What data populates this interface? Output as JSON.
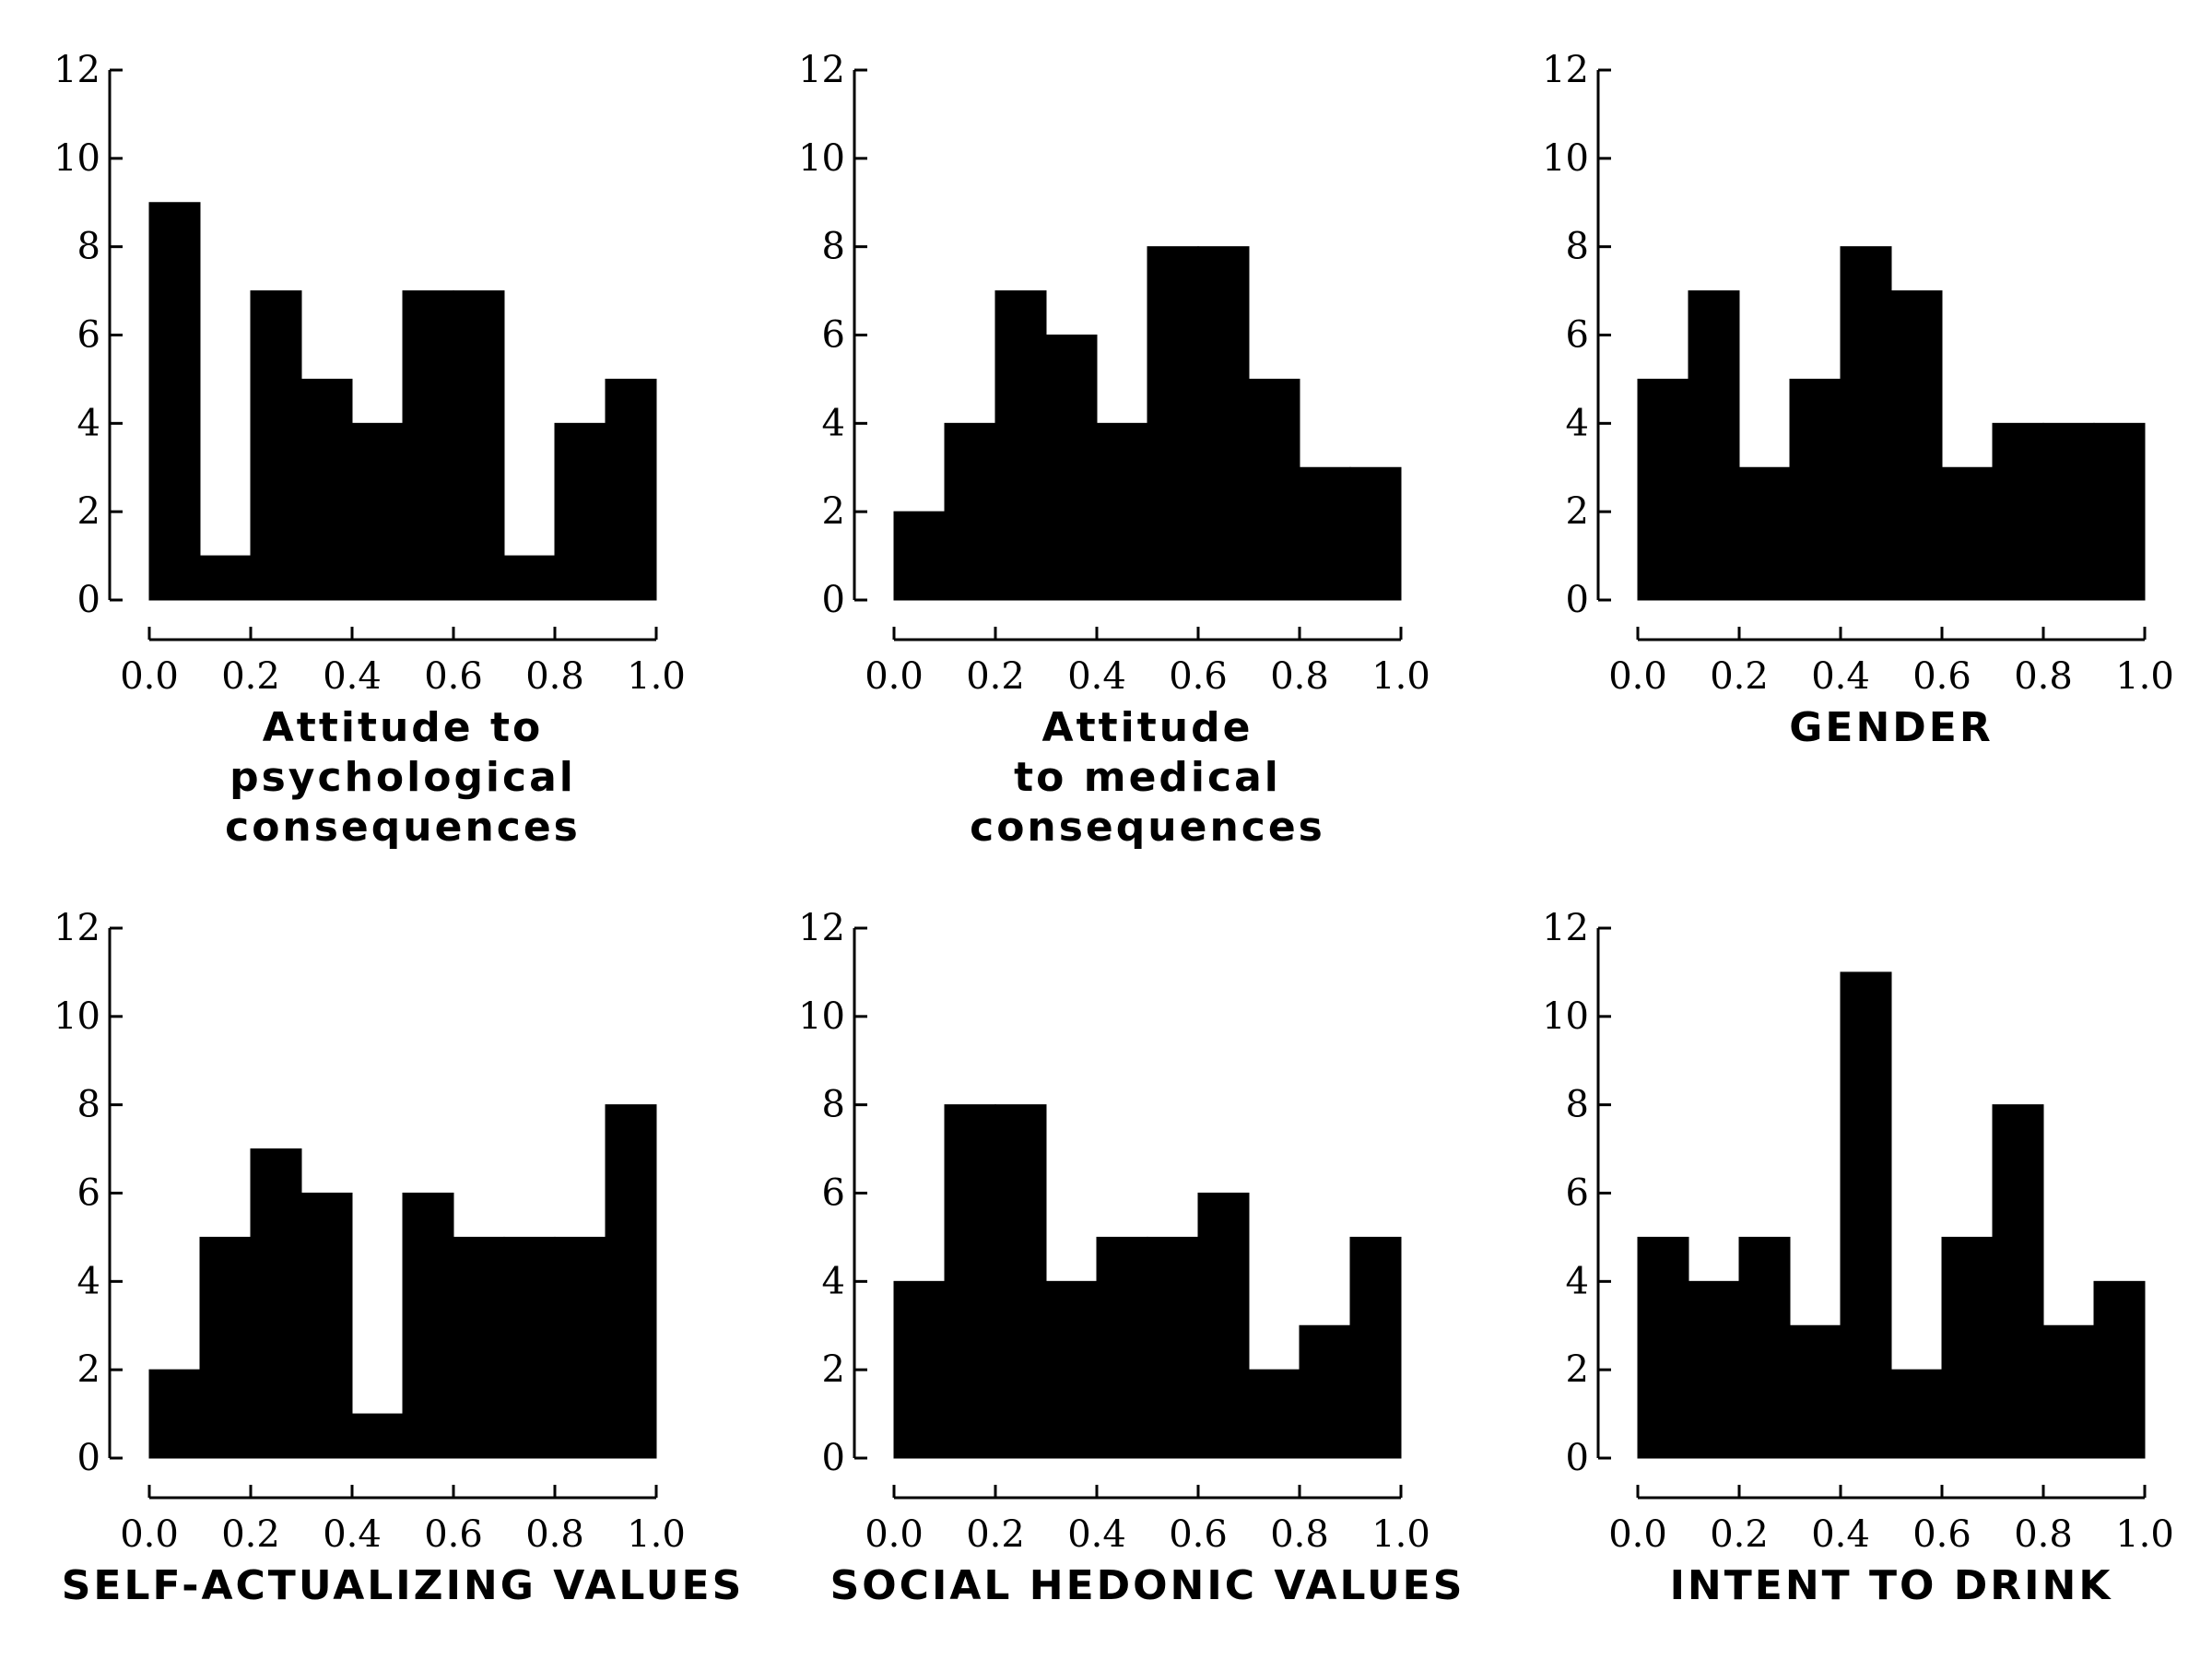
{
  "chart_data": [
    {
      "type": "bar",
      "title": "Attitude to\npsychological\nconsequences",
      "bin_edges": [
        0.0,
        0.1,
        0.2,
        0.3,
        0.4,
        0.5,
        0.6,
        0.7,
        0.8,
        0.9,
        1.0
      ],
      "values": [
        9,
        1,
        7,
        5,
        4,
        7,
        7,
        1,
        4,
        5
      ],
      "xlim": [
        0.0,
        1.0
      ],
      "ylim": [
        0,
        12
      ],
      "xticks": [
        "0.0",
        "0.2",
        "0.4",
        "0.6",
        "0.8",
        "1.0"
      ],
      "yticks": [
        "0",
        "2",
        "4",
        "6",
        "8",
        "10",
        "12"
      ]
    },
    {
      "type": "bar",
      "title": "Attitude\nto medical\nconsequences",
      "bin_edges": [
        0.0,
        0.1,
        0.2,
        0.3,
        0.4,
        0.5,
        0.6,
        0.7,
        0.8,
        0.9,
        1.0
      ],
      "values": [
        2,
        4,
        7,
        6,
        4,
        8,
        8,
        5,
        3,
        3
      ],
      "xlim": [
        0.0,
        1.0
      ],
      "ylim": [
        0,
        12
      ],
      "xticks": [
        "0.0",
        "0.2",
        "0.4",
        "0.6",
        "0.8",
        "1.0"
      ],
      "yticks": [
        "0",
        "2",
        "4",
        "6",
        "8",
        "10",
        "12"
      ]
    },
    {
      "type": "bar",
      "title": "GENDER",
      "bin_edges": [
        0.0,
        0.1,
        0.2,
        0.3,
        0.4,
        0.5,
        0.6,
        0.7,
        0.8,
        0.9,
        1.0
      ],
      "values": [
        5,
        7,
        3,
        5,
        8,
        7,
        3,
        4,
        4,
        4
      ],
      "xlim": [
        0.0,
        1.0
      ],
      "ylim": [
        0,
        12
      ],
      "xticks": [
        "0.0",
        "0.2",
        "0.4",
        "0.6",
        "0.8",
        "1.0"
      ],
      "yticks": [
        "0",
        "2",
        "4",
        "6",
        "8",
        "10",
        "12"
      ]
    },
    {
      "type": "bar",
      "title": "SELF-ACTUALIZING VALUES",
      "bin_edges": [
        0.0,
        0.1,
        0.2,
        0.3,
        0.4,
        0.5,
        0.6,
        0.7,
        0.8,
        0.9,
        1.0
      ],
      "values": [
        2,
        5,
        7,
        6,
        1,
        6,
        5,
        5,
        5,
        8
      ],
      "xlim": [
        0.0,
        1.0
      ],
      "ylim": [
        0,
        12
      ],
      "xticks": [
        "0.0",
        "0.2",
        "0.4",
        "0.6",
        "0.8",
        "1.0"
      ],
      "yticks": [
        "0",
        "2",
        "4",
        "6",
        "8",
        "10",
        "12"
      ]
    },
    {
      "type": "bar",
      "title": "SOCIAL HEDONIC VALUES",
      "bin_edges": [
        0.0,
        0.1,
        0.2,
        0.3,
        0.4,
        0.5,
        0.6,
        0.7,
        0.8,
        0.9,
        1.0
      ],
      "values": [
        4,
        8,
        8,
        4,
        5,
        5,
        6,
        2,
        3,
        5
      ],
      "xlim": [
        0.0,
        1.0
      ],
      "ylim": [
        0,
        12
      ],
      "xticks": [
        "0.0",
        "0.2",
        "0.4",
        "0.6",
        "0.8",
        "1.0"
      ],
      "yticks": [
        "0",
        "2",
        "4",
        "6",
        "8",
        "10",
        "12"
      ]
    },
    {
      "type": "bar",
      "title": "INTENT TO DRINK",
      "bin_edges": [
        0.0,
        0.1,
        0.2,
        0.3,
        0.4,
        0.5,
        0.6,
        0.7,
        0.8,
        0.9,
        1.0
      ],
      "values": [
        5,
        4,
        5,
        3,
        11,
        2,
        5,
        8,
        3,
        4
      ],
      "xlim": [
        0.0,
        1.0
      ],
      "ylim": [
        0,
        12
      ],
      "xticks": [
        "0.0",
        "0.2",
        "0.4",
        "0.6",
        "0.8",
        "1.0"
      ],
      "yticks": [
        "0",
        "2",
        "4",
        "6",
        "8",
        "10",
        "12"
      ]
    }
  ],
  "colors": {
    "bars": "#000000",
    "axes": "#000000",
    "background": "#ffffff"
  }
}
